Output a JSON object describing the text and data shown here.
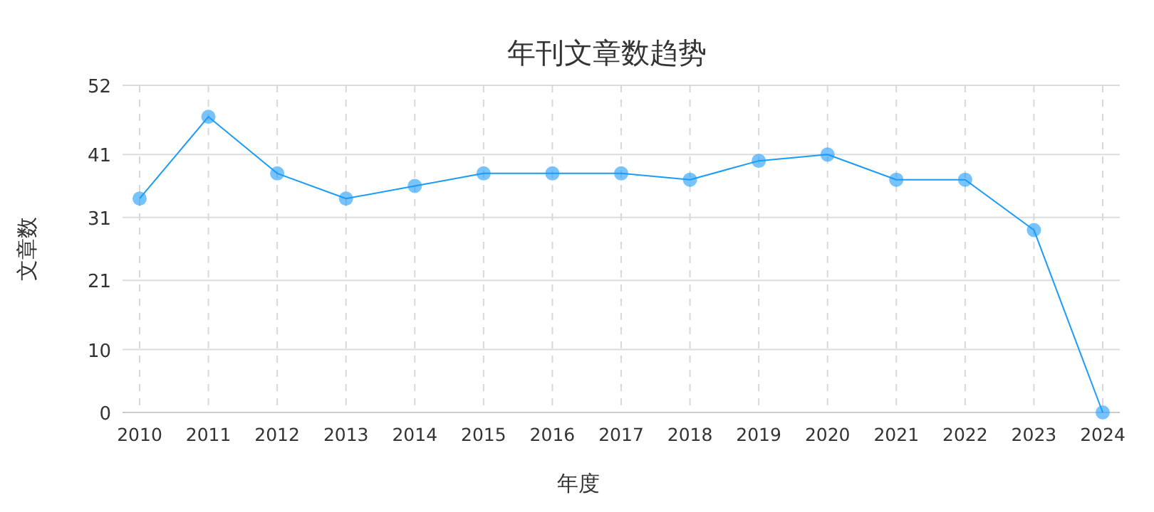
{
  "chart_data": {
    "type": "line",
    "title": "年刊文章数趋势",
    "xlabel": "年度",
    "ylabel": "文章数",
    "categories": [
      "2010",
      "2011",
      "2012",
      "2013",
      "2014",
      "2015",
      "2016",
      "2017",
      "2018",
      "2019",
      "2020",
      "2021",
      "2022",
      "2023",
      "2024"
    ],
    "series": [
      {
        "color": "#1a9bfc",
        "values": [
          34,
          47,
          38,
          34,
          36,
          38,
          38,
          38,
          37,
          40,
          41,
          37,
          37,
          29,
          0
        ]
      }
    ],
    "ylim": [
      0,
      52
    ],
    "yticks": [
      0,
      10,
      21,
      31,
      41,
      52
    ],
    "grid": true,
    "marker": "circle",
    "line_style": "solid"
  }
}
